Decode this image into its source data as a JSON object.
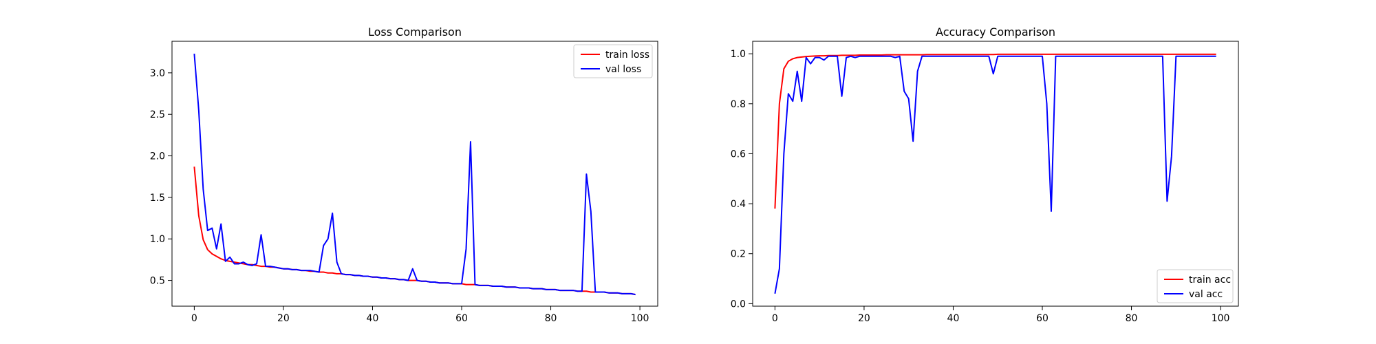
{
  "chart_data": [
    {
      "type": "line",
      "title": "Loss Comparison",
      "xlabel": "",
      "ylabel": "",
      "xlim": [
        -5,
        104
      ],
      "ylim": [
        0.19,
        3.38
      ],
      "xticks": [
        0,
        20,
        40,
        60,
        80,
        100
      ],
      "yticks": [
        0.5,
        1.0,
        1.5,
        2.0,
        2.5,
        3.0
      ],
      "ytick_labels": [
        "0.5",
        "1.0",
        "1.5",
        "2.0",
        "2.5",
        "3.0"
      ],
      "grid": false,
      "legend": {
        "placement": "top-right"
      },
      "series": [
        {
          "name": "train loss",
          "color": "#ff0000",
          "x": [
            0,
            1,
            2,
            3,
            4,
            5,
            6,
            7,
            8,
            9,
            10,
            11,
            12,
            13,
            14,
            15,
            16,
            17,
            18,
            19,
            20,
            21,
            22,
            23,
            24,
            25,
            26,
            27,
            28,
            29,
            30,
            31,
            32,
            33,
            34,
            35,
            36,
            37,
            38,
            39,
            40,
            41,
            42,
            43,
            44,
            45,
            46,
            47,
            48,
            49,
            50,
            51,
            52,
            53,
            54,
            55,
            56,
            57,
            58,
            59,
            60,
            61,
            62,
            63,
            64,
            65,
            66,
            67,
            68,
            69,
            70,
            71,
            72,
            73,
            74,
            75,
            76,
            77,
            78,
            79,
            80,
            81,
            82,
            83,
            84,
            85,
            86,
            87,
            88,
            89,
            90,
            91,
            92,
            93,
            94,
            95,
            96,
            97,
            98,
            99
          ],
          "values": [
            1.87,
            1.28,
            0.99,
            0.87,
            0.82,
            0.79,
            0.76,
            0.74,
            0.73,
            0.72,
            0.71,
            0.7,
            0.69,
            0.69,
            0.68,
            0.67,
            0.67,
            0.66,
            0.66,
            0.65,
            0.64,
            0.64,
            0.63,
            0.63,
            0.62,
            0.62,
            0.61,
            0.61,
            0.6,
            0.6,
            0.59,
            0.59,
            0.58,
            0.58,
            0.57,
            0.57,
            0.56,
            0.56,
            0.55,
            0.55,
            0.54,
            0.54,
            0.53,
            0.53,
            0.52,
            0.52,
            0.51,
            0.51,
            0.5,
            0.5,
            0.5,
            0.49,
            0.49,
            0.48,
            0.48,
            0.47,
            0.47,
            0.47,
            0.46,
            0.46,
            0.46,
            0.45,
            0.45,
            0.45,
            0.44,
            0.44,
            0.44,
            0.43,
            0.43,
            0.43,
            0.42,
            0.42,
            0.42,
            0.41,
            0.41,
            0.41,
            0.4,
            0.4,
            0.4,
            0.39,
            0.39,
            0.39,
            0.38,
            0.38,
            0.38,
            0.38,
            0.37,
            0.37,
            0.37,
            0.36,
            0.36,
            0.36,
            0.36,
            0.35,
            0.35,
            0.35,
            0.34,
            0.34,
            0.34,
            0.33
          ]
        },
        {
          "name": "val loss",
          "color": "#0000ff",
          "x": [
            0,
            1,
            2,
            3,
            4,
            5,
            6,
            7,
            8,
            9,
            10,
            11,
            12,
            13,
            14,
            15,
            16,
            17,
            18,
            19,
            20,
            21,
            22,
            23,
            24,
            25,
            26,
            27,
            28,
            29,
            30,
            31,
            32,
            33,
            34,
            35,
            36,
            37,
            38,
            39,
            40,
            41,
            42,
            43,
            44,
            45,
            46,
            47,
            48,
            49,
            50,
            51,
            52,
            53,
            54,
            55,
            56,
            57,
            58,
            59,
            60,
            61,
            62,
            63,
            64,
            65,
            66,
            67,
            68,
            69,
            70,
            71,
            72,
            73,
            74,
            75,
            76,
            77,
            78,
            79,
            80,
            81,
            82,
            83,
            84,
            85,
            86,
            87,
            88,
            89,
            90,
            91,
            92,
            93,
            94,
            95,
            96,
            97,
            98,
            99
          ],
          "values": [
            3.23,
            2.55,
            1.6,
            1.1,
            1.13,
            0.88,
            1.18,
            0.73,
            0.78,
            0.7,
            0.7,
            0.72,
            0.69,
            0.68,
            0.7,
            1.05,
            0.67,
            0.67,
            0.66,
            0.65,
            0.64,
            0.64,
            0.63,
            0.63,
            0.62,
            0.62,
            0.62,
            0.61,
            0.6,
            0.92,
            1.0,
            1.31,
            0.72,
            0.58,
            0.57,
            0.57,
            0.56,
            0.56,
            0.55,
            0.55,
            0.54,
            0.54,
            0.53,
            0.53,
            0.52,
            0.52,
            0.51,
            0.51,
            0.5,
            0.64,
            0.5,
            0.49,
            0.49,
            0.48,
            0.48,
            0.47,
            0.47,
            0.47,
            0.46,
            0.46,
            0.46,
            0.88,
            2.17,
            0.45,
            0.44,
            0.44,
            0.44,
            0.43,
            0.43,
            0.43,
            0.42,
            0.42,
            0.42,
            0.41,
            0.41,
            0.41,
            0.4,
            0.4,
            0.4,
            0.39,
            0.39,
            0.39,
            0.38,
            0.38,
            0.38,
            0.38,
            0.37,
            0.37,
            1.78,
            1.33,
            0.36,
            0.36,
            0.36,
            0.35,
            0.35,
            0.35,
            0.34,
            0.34,
            0.34,
            0.33
          ]
        }
      ]
    },
    {
      "type": "line",
      "title": "Accuracy Comparison",
      "xlabel": "",
      "ylabel": "",
      "xlim": [
        -5,
        104
      ],
      "ylim": [
        -0.01,
        1.05
      ],
      "xticks": [
        0,
        20,
        40,
        60,
        80,
        100
      ],
      "yticks": [
        0.0,
        0.2,
        0.4,
        0.6,
        0.8,
        1.0
      ],
      "ytick_labels": [
        "0.0",
        "0.2",
        "0.4",
        "0.6",
        "0.8",
        "1.0"
      ],
      "grid": false,
      "legend": {
        "placement": "bottom-right"
      },
      "series": [
        {
          "name": "train acc",
          "color": "#ff0000",
          "x": [
            0,
            1,
            2,
            3,
            4,
            5,
            6,
            7,
            8,
            9,
            10,
            11,
            12,
            13,
            14,
            15,
            16,
            17,
            18,
            19,
            20,
            21,
            22,
            23,
            24,
            25,
            26,
            27,
            28,
            29,
            30,
            31,
            32,
            33,
            34,
            35,
            36,
            37,
            38,
            39,
            40,
            41,
            42,
            43,
            44,
            45,
            46,
            47,
            48,
            49,
            50,
            51,
            52,
            53,
            54,
            55,
            56,
            57,
            58,
            59,
            60,
            61,
            62,
            63,
            64,
            65,
            66,
            67,
            68,
            69,
            70,
            71,
            72,
            73,
            74,
            75,
            76,
            77,
            78,
            79,
            80,
            81,
            82,
            83,
            84,
            85,
            86,
            87,
            88,
            89,
            90,
            91,
            92,
            93,
            94,
            95,
            96,
            97,
            98,
            99
          ],
          "values": [
            0.38,
            0.8,
            0.94,
            0.97,
            0.98,
            0.985,
            0.987,
            0.989,
            0.99,
            0.991,
            0.992,
            0.992,
            0.993,
            0.993,
            0.993,
            0.994,
            0.994,
            0.994,
            0.994,
            0.995,
            0.995,
            0.995,
            0.995,
            0.995,
            0.995,
            0.996,
            0.996,
            0.996,
            0.996,
            0.996,
            0.996,
            0.996,
            0.996,
            0.996,
            0.997,
            0.997,
            0.997,
            0.997,
            0.997,
            0.997,
            0.997,
            0.997,
            0.997,
            0.997,
            0.997,
            0.997,
            0.997,
            0.997,
            0.997,
            0.997,
            0.998,
            0.998,
            0.998,
            0.998,
            0.998,
            0.998,
            0.998,
            0.998,
            0.998,
            0.998,
            0.998,
            0.998,
            0.998,
            0.998,
            0.998,
            0.998,
            0.998,
            0.998,
            0.998,
            0.998,
            0.998,
            0.998,
            0.998,
            0.998,
            0.998,
            0.998,
            0.998,
            0.998,
            0.998,
            0.998,
            0.998,
            0.998,
            0.998,
            0.998,
            0.998,
            0.998,
            0.998,
            0.998,
            0.998,
            0.998,
            0.998,
            0.998,
            0.998,
            0.998,
            0.998,
            0.998,
            0.998,
            0.998,
            0.998,
            0.998
          ]
        },
        {
          "name": "val acc",
          "color": "#0000ff",
          "x": [
            0,
            1,
            2,
            3,
            4,
            5,
            6,
            7,
            8,
            9,
            10,
            11,
            12,
            13,
            14,
            15,
            16,
            17,
            18,
            19,
            20,
            21,
            22,
            23,
            24,
            25,
            26,
            27,
            28,
            29,
            30,
            31,
            32,
            33,
            34,
            35,
            36,
            37,
            38,
            39,
            40,
            41,
            42,
            43,
            44,
            45,
            46,
            47,
            48,
            49,
            50,
            51,
            52,
            53,
            54,
            55,
            56,
            57,
            58,
            59,
            60,
            61,
            62,
            63,
            64,
            65,
            66,
            67,
            68,
            69,
            70,
            71,
            72,
            73,
            74,
            75,
            76,
            77,
            78,
            79,
            80,
            81,
            82,
            83,
            84,
            85,
            86,
            87,
            88,
            89,
            90,
            91,
            92,
            93,
            94,
            95,
            96,
            97,
            98,
            99
          ],
          "values": [
            0.04,
            0.14,
            0.6,
            0.84,
            0.81,
            0.93,
            0.81,
            0.985,
            0.96,
            0.985,
            0.985,
            0.975,
            0.99,
            0.99,
            0.99,
            0.83,
            0.985,
            0.99,
            0.985,
            0.99,
            0.99,
            0.99,
            0.99,
            0.99,
            0.99,
            0.99,
            0.99,
            0.985,
            0.99,
            0.85,
            0.82,
            0.65,
            0.93,
            0.99,
            0.99,
            0.99,
            0.99,
            0.99,
            0.99,
            0.99,
            0.99,
            0.99,
            0.99,
            0.99,
            0.99,
            0.99,
            0.99,
            0.99,
            0.99,
            0.92,
            0.99,
            0.99,
            0.99,
            0.99,
            0.99,
            0.99,
            0.99,
            0.99,
            0.99,
            0.99,
            0.99,
            0.8,
            0.37,
            0.99,
            0.99,
            0.99,
            0.99,
            0.99,
            0.99,
            0.99,
            0.99,
            0.99,
            0.99,
            0.99,
            0.99,
            0.99,
            0.99,
            0.99,
            0.99,
            0.99,
            0.99,
            0.99,
            0.99,
            0.99,
            0.99,
            0.99,
            0.99,
            0.99,
            0.41,
            0.59,
            0.99,
            0.99,
            0.99,
            0.99,
            0.99,
            0.99,
            0.99,
            0.99,
            0.99,
            0.99
          ]
        }
      ]
    }
  ]
}
